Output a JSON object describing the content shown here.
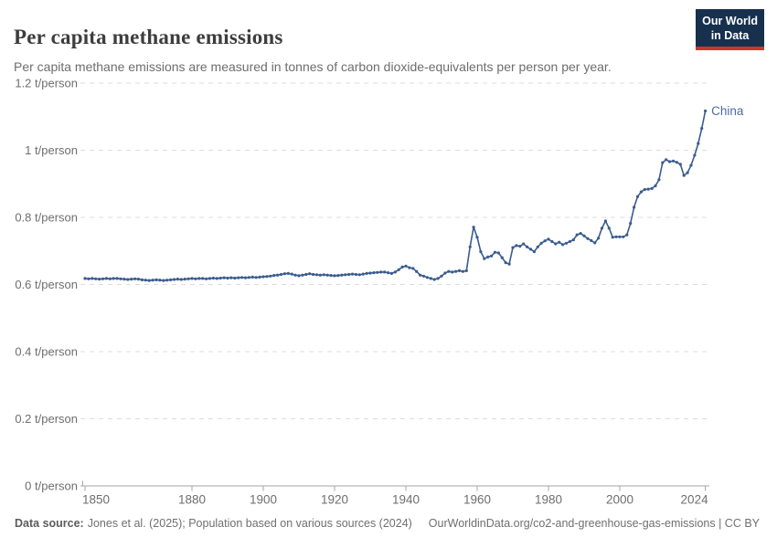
{
  "header": {
    "title": "Per capita methane emissions",
    "subtitle": "Per capita methane emissions are measured in tonnes of carbon dioxide-equivalents per person per year."
  },
  "logo": {
    "line1": "Our World",
    "line2": "in Data"
  },
  "footer": {
    "source_label": "Data source:",
    "source_text": "Jones et al. (2025); Population based on various sources (2024)",
    "rights_text": "OurWorldinData.org/co2-and-greenhouse-gas-emissions | CC BY"
  },
  "chart_data": {
    "type": "line",
    "title": "Per capita methane emissions",
    "unit": "t/person",
    "xlim": [
      1850,
      2024
    ],
    "ylim": [
      0,
      1.2
    ],
    "grid": "dashed-horizontal",
    "x_ticks": [
      1850,
      1880,
      1900,
      1920,
      1940,
      1960,
      1980,
      2000,
      2024
    ],
    "y_ticks": [
      {
        "value": 0,
        "label": "0 t/person"
      },
      {
        "value": 0.2,
        "label": "0.2 t/person"
      },
      {
        "value": 0.4,
        "label": "0.4 t/person"
      },
      {
        "value": 0.6,
        "label": "0.6 t/person"
      },
      {
        "value": 0.8,
        "label": "0.8 t/person"
      },
      {
        "value": 1,
        "label": "1 t/person"
      },
      {
        "value": 1.2,
        "label": "1.2 t/person"
      }
    ],
    "colors": {
      "line": "#3b5c8f",
      "series_label": "#4d6ba3",
      "grid": "#dcdcdc",
      "axis": "#a5a5a5",
      "tick_label": "#6e6e6e"
    },
    "series": [
      {
        "name": "China",
        "x_start": 1850,
        "x_end": 2024,
        "values": [
          0.618,
          0.617,
          0.618,
          0.617,
          0.616,
          0.617,
          0.618,
          0.617,
          0.618,
          0.618,
          0.617,
          0.616,
          0.615,
          0.616,
          0.617,
          0.616,
          0.614,
          0.613,
          0.612,
          0.613,
          0.614,
          0.613,
          0.612,
          0.613,
          0.614,
          0.615,
          0.616,
          0.615,
          0.616,
          0.617,
          0.618,
          0.617,
          0.618,
          0.618,
          0.617,
          0.618,
          0.619,
          0.618,
          0.619,
          0.62,
          0.619,
          0.62,
          0.619,
          0.62,
          0.621,
          0.62,
          0.621,
          0.622,
          0.621,
          0.622,
          0.623,
          0.624,
          0.625,
          0.627,
          0.628,
          0.63,
          0.632,
          0.633,
          0.631,
          0.628,
          0.626,
          0.628,
          0.63,
          0.632,
          0.63,
          0.629,
          0.628,
          0.629,
          0.628,
          0.627,
          0.626,
          0.627,
          0.628,
          0.629,
          0.63,
          0.631,
          0.63,
          0.629,
          0.631,
          0.633,
          0.634,
          0.635,
          0.636,
          0.637,
          0.637,
          0.635,
          0.633,
          0.637,
          0.644,
          0.652,
          0.655,
          0.65,
          0.648,
          0.639,
          0.628,
          0.625,
          0.621,
          0.618,
          0.615,
          0.618,
          0.625,
          0.634,
          0.639,
          0.637,
          0.639,
          0.641,
          0.639,
          0.641,
          0.712,
          0.771,
          0.741,
          0.698,
          0.677,
          0.682,
          0.685,
          0.696,
          0.694,
          0.68,
          0.665,
          0.661,
          0.71,
          0.716,
          0.714,
          0.721,
          0.712,
          0.705,
          0.698,
          0.712,
          0.723,
          0.73,
          0.735,
          0.728,
          0.721,
          0.726,
          0.719,
          0.723,
          0.728,
          0.733,
          0.748,
          0.752,
          0.745,
          0.737,
          0.731,
          0.724,
          0.738,
          0.768,
          0.789,
          0.768,
          0.741,
          0.742,
          0.742,
          0.742,
          0.748,
          0.782,
          0.83,
          0.862,
          0.876,
          0.883,
          0.884,
          0.886,
          0.894,
          0.912,
          0.963,
          0.972,
          0.966,
          0.968,
          0.964,
          0.958,
          0.925,
          0.933,
          0.955,
          0.985,
          1.02,
          1.065,
          1.117
        ]
      }
    ]
  }
}
